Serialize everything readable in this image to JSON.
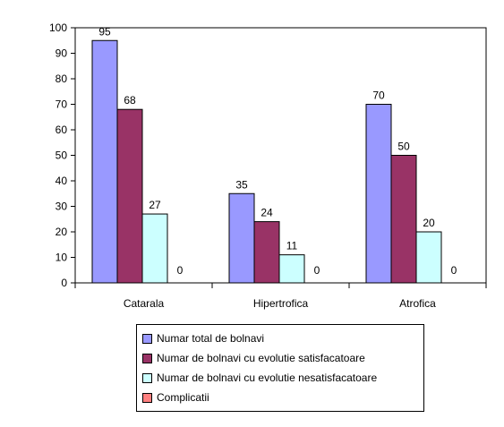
{
  "chart_data": {
    "type": "bar",
    "title": "",
    "xlabel": "",
    "ylabel": "",
    "ylim": [
      0,
      100
    ],
    "ytick_step": 10,
    "grid": false,
    "legend_placement": "bottom",
    "categories": [
      "Catarala",
      "Hipertrofica",
      "Atrofica"
    ],
    "series": [
      {
        "name": "Numar total de bolnavi",
        "color": "#9999ff",
        "values": [
          95,
          35,
          70
        ]
      },
      {
        "name": "Numar de bolnavi cu evolutie satisfacatoare",
        "color": "#993366",
        "values": [
          68,
          24,
          50
        ]
      },
      {
        "name": "Numar de bolnavi cu evolutie nesatisfacatoare",
        "color": "#ccffff",
        "values": [
          27,
          11,
          20
        ]
      },
      {
        "name": "Complicatii",
        "color": "#ff8080",
        "values": [
          0,
          0,
          0
        ]
      }
    ]
  }
}
